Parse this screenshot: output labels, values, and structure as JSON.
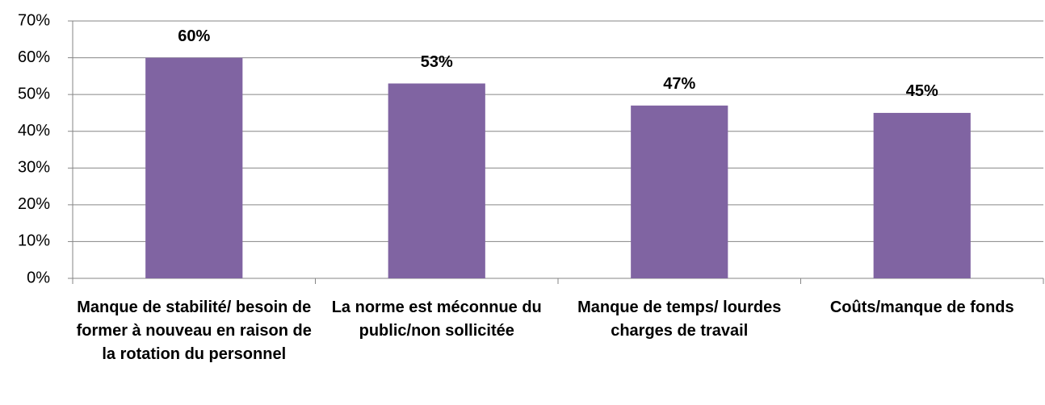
{
  "chart_data": {
    "type": "bar",
    "categories": [
      "Manque de stabilité/ besoin de former à nouveau en raison de la rotation du personnel",
      "La norme est méconnue du public/non sollicitée",
      "Manque de temps/ lourdes charges de travail",
      "Coûts/manque de fonds"
    ],
    "values": [
      60,
      53,
      47,
      45
    ],
    "value_labels": [
      "60%",
      "53%",
      "47%",
      "45%"
    ],
    "color": "#8064a2",
    "ylim": [
      0,
      70
    ],
    "yticks": [
      {
        "value": 0,
        "label": "0%"
      },
      {
        "value": 10,
        "label": "10%"
      },
      {
        "value": 20,
        "label": "20%"
      },
      {
        "value": 30,
        "label": "30%"
      },
      {
        "value": 40,
        "label": "40%"
      },
      {
        "value": 50,
        "label": "50%"
      },
      {
        "value": 60,
        "label": "60%"
      },
      {
        "value": 70,
        "label": "70%"
      }
    ],
    "grid": true
  }
}
